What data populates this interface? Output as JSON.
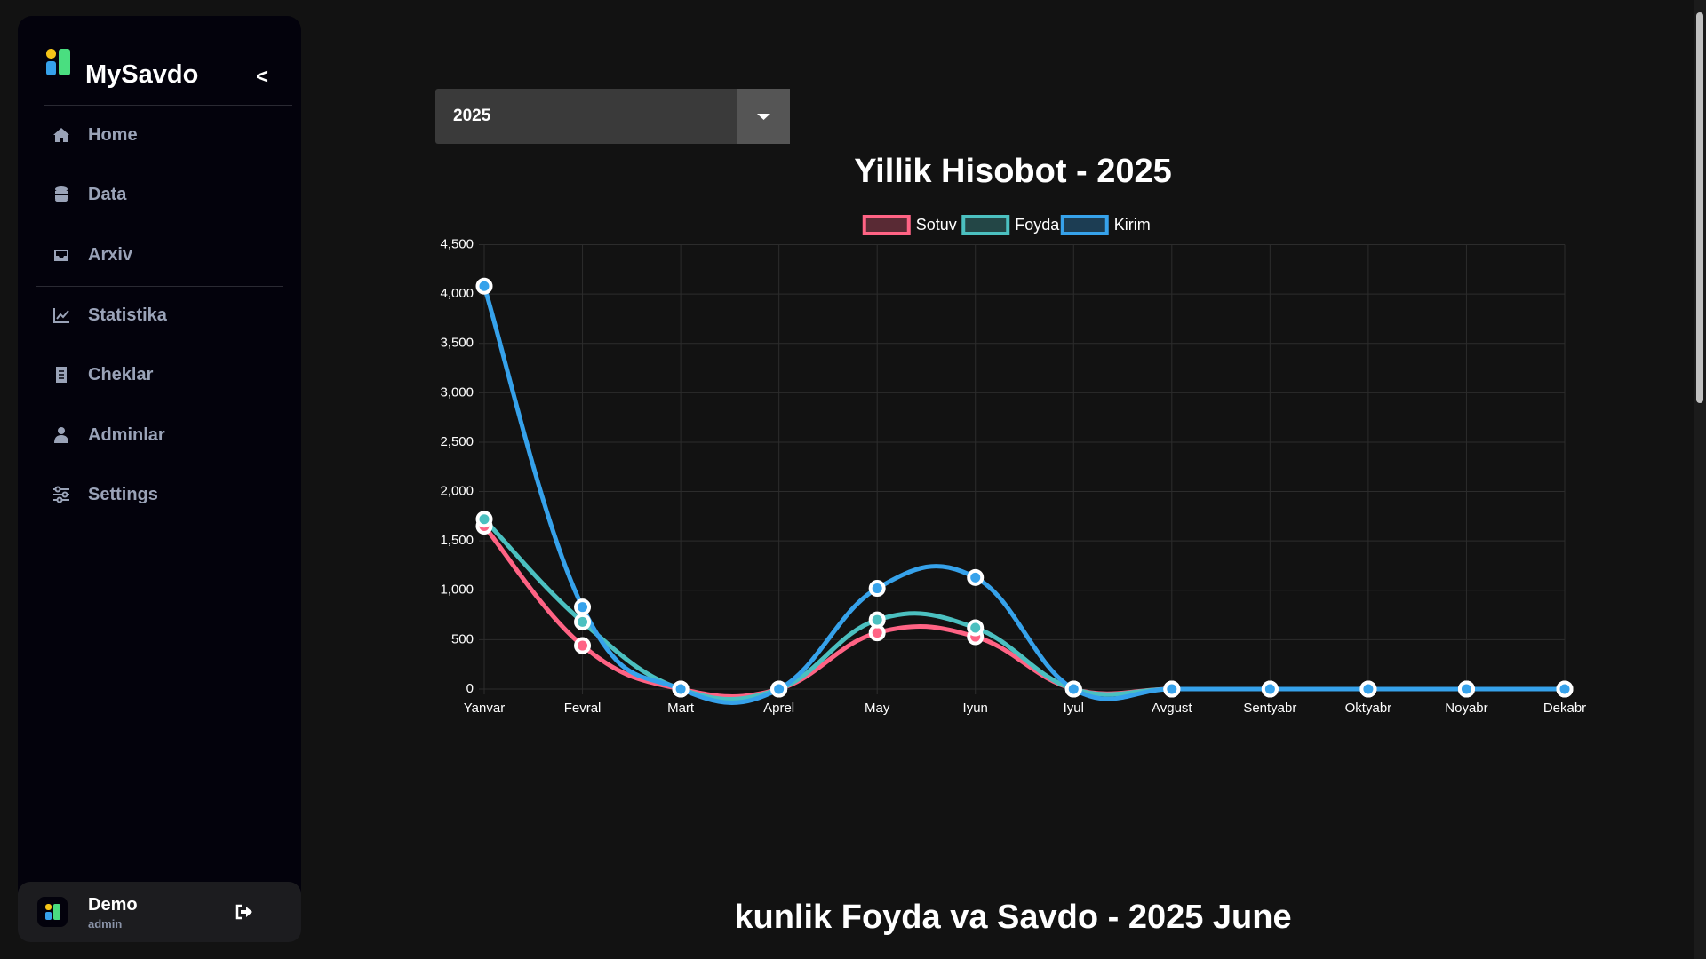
{
  "sidebar": {
    "brand": "MySavdo",
    "collapse": "<",
    "nav": [
      "Home",
      "Data",
      "Arxiv",
      "Statistika",
      "Cheklar",
      "Adminlar",
      "Settings"
    ],
    "user": {
      "name": "Demo",
      "role": "admin"
    }
  },
  "year_select": "2025",
  "chart_data": {
    "type": "line",
    "title": "Yillik Hisobot - 2025",
    "categories": [
      "Yanvar",
      "Fevral",
      "Mart",
      "Aprel",
      "May",
      "Iyun",
      "Iyul",
      "Avgust",
      "Sentyabr",
      "Oktyabr",
      "Noyabr",
      "Dekabr"
    ],
    "series": [
      {
        "name": "Sotuv",
        "color": "#ff6384",
        "values": [
          1650,
          440,
          0,
          0,
          570,
          530,
          0,
          0,
          0,
          0,
          0,
          0
        ]
      },
      {
        "name": "Foyda",
        "color": "#4bc0c0",
        "values": [
          1720,
          680,
          0,
          0,
          700,
          620,
          0,
          0,
          0,
          0,
          0,
          0
        ]
      },
      {
        "name": "Kirim",
        "color": "#36a2eb",
        "values": [
          4080,
          830,
          0,
          0,
          1020,
          1130,
          0,
          0,
          0,
          0,
          0,
          0
        ]
      }
    ],
    "ylim": [
      0,
      4500
    ],
    "yticks": [
      0,
      500,
      {
        "value": 1000,
        "label": "1,000"
      },
      {
        "value": 1500,
        "label": "1,500"
      },
      {
        "value": 2000,
        "label": "2,000"
      },
      {
        "value": 2500,
        "label": "2,500"
      },
      {
        "value": 3000,
        "label": "3,000"
      },
      {
        "value": 3500,
        "label": "3,500"
      },
      {
        "value": 4000,
        "label": "4,000"
      },
      {
        "value": 4500,
        "label": "4,500"
      }
    ],
    "grid": true,
    "legend": "top"
  },
  "daily_title": "kunlik Foyda va Savdo - 2025 June"
}
